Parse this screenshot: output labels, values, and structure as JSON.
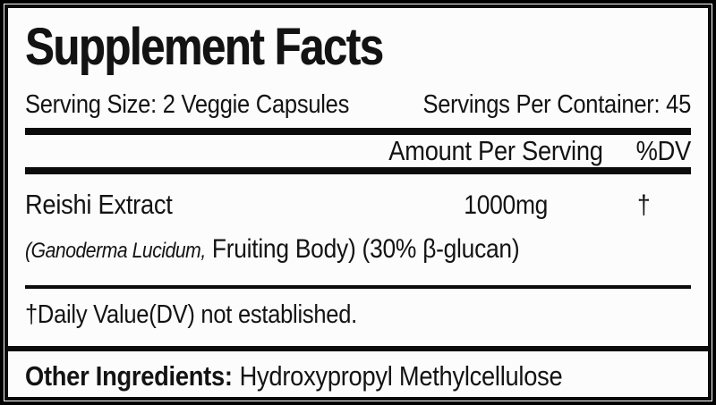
{
  "colors": {
    "background": "#000000",
    "paper": "#fcfcfc",
    "ink": "#131313",
    "rule": "#0c0c0c"
  },
  "label": {
    "title": "Supplement Facts",
    "serving_size": "Serving Size: 2 Veggie Capsules",
    "servings_per_container": "Servings Per Container: 45",
    "columns": {
      "amount": "Amount Per Serving",
      "dv": "%DV"
    },
    "ingredients": [
      {
        "name": "Reishi Extract",
        "amount": "1000mg",
        "dv": "†",
        "detail_latin": "(Ganoderma Lucidum,",
        "detail_rest": " Fruiting Body) (30% β-glucan)"
      }
    ],
    "footnote": "†Daily Value(DV) not established.",
    "other_ingredients": {
      "label": "Other Ingredients:",
      "value": "Hydroxypropyl Methylcellulose"
    }
  }
}
